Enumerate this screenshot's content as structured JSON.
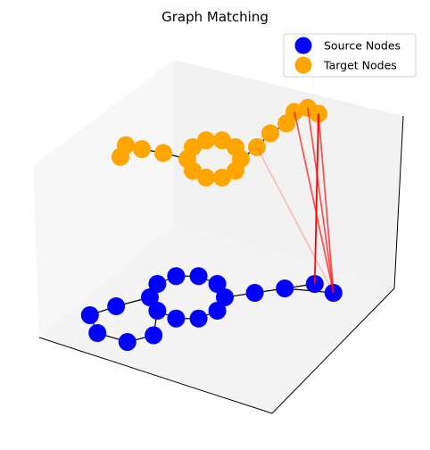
{
  "chart_data": {
    "type": "3d-scatter-graph",
    "title": "Graph Matching",
    "legend": {
      "placement": "top-right",
      "entries": [
        {
          "label": "Source Nodes",
          "color": "#0000ff"
        },
        {
          "label": "Target Nodes",
          "color": "#ffa500"
        }
      ]
    },
    "axes": {
      "ticks_visible": false,
      "grid": false
    },
    "colors": {
      "source_node": "#0000ff",
      "target_node": "#ffa500",
      "graph_edge": "#000000",
      "match_line": "#ff0000",
      "pane_back": "#f2f2f2",
      "pane_side": "#f7f7f7",
      "pane_floor": "#f4f4f4"
    },
    "source_nodes": [
      {
        "id": "s1",
        "x": 1.0,
        "y": 0.0
      },
      {
        "id": "s2",
        "x": 0.8,
        "y": 0.6
      },
      {
        "id": "s3",
        "x": 0.3,
        "y": 0.95
      },
      {
        "id": "s4",
        "x": -0.3,
        "y": 0.95
      },
      {
        "id": "s5",
        "x": -0.8,
        "y": 0.6
      },
      {
        "id": "s6",
        "x": -1.0,
        "y": 0.0
      },
      {
        "id": "s7",
        "x": -0.8,
        "y": -0.6
      },
      {
        "id": "s8",
        "x": -0.3,
        "y": -0.95
      },
      {
        "id": "s9",
        "x": 0.3,
        "y": -0.95
      },
      {
        "id": "s10",
        "x": 0.8,
        "y": -0.6
      },
      {
        "id": "s11",
        "x": 1.8,
        "y": 0.2
      },
      {
        "id": "s12",
        "x": 2.6,
        "y": 0.4
      },
      {
        "id": "s13",
        "x": 3.4,
        "y": 0.6
      },
      {
        "id": "s14",
        "x": 3.9,
        "y": 0.2
      },
      {
        "id": "s15",
        "x": -1.9,
        "y": -0.4
      },
      {
        "id": "s16",
        "x": -2.6,
        "y": -0.8
      },
      {
        "id": "s17",
        "x": -2.4,
        "y": -1.6
      },
      {
        "id": "s18",
        "x": -1.6,
        "y": -2.0
      },
      {
        "id": "s19",
        "x": -0.9,
        "y": -1.7
      }
    ],
    "source_edges": [
      [
        "s1",
        "s2"
      ],
      [
        "s2",
        "s3"
      ],
      [
        "s3",
        "s4"
      ],
      [
        "s4",
        "s5"
      ],
      [
        "s5",
        "s6"
      ],
      [
        "s6",
        "s7"
      ],
      [
        "s7",
        "s8"
      ],
      [
        "s8",
        "s9"
      ],
      [
        "s9",
        "s10"
      ],
      [
        "s10",
        "s1"
      ],
      [
        "s1",
        "s11"
      ],
      [
        "s11",
        "s12"
      ],
      [
        "s12",
        "s13"
      ],
      [
        "s12",
        "s14"
      ],
      [
        "s6",
        "s15"
      ],
      [
        "s15",
        "s16"
      ],
      [
        "s16",
        "s17"
      ],
      [
        "s17",
        "s18"
      ],
      [
        "s18",
        "s19"
      ],
      [
        "s19",
        "s7"
      ]
    ],
    "target_nodes": [
      {
        "id": "t1",
        "x": 1.0,
        "y": 0.0
      },
      {
        "id": "t2",
        "x": 0.8,
        "y": 0.6
      },
      {
        "id": "t3",
        "x": 0.3,
        "y": 0.95
      },
      {
        "id": "t4",
        "x": -0.3,
        "y": 0.95
      },
      {
        "id": "t5",
        "x": -0.8,
        "y": 0.6
      },
      {
        "id": "t6",
        "x": -1.0,
        "y": 0.0
      },
      {
        "id": "t7",
        "x": -0.8,
        "y": -0.6
      },
      {
        "id": "t8",
        "x": -0.3,
        "y": -0.95
      },
      {
        "id": "t9",
        "x": 0.3,
        "y": -0.95
      },
      {
        "id": "t10",
        "x": 0.8,
        "y": -0.6
      },
      {
        "id": "t11",
        "x": 1.6,
        "y": 0.6
      },
      {
        "id": "t12",
        "x": 2.1,
        "y": 1.3
      },
      {
        "id": "t13",
        "x": 2.7,
        "y": 1.8
      },
      {
        "id": "t14",
        "x": 3.0,
        "y": 2.4
      },
      {
        "id": "t15",
        "x": 3.5,
        "y": 2.6
      },
      {
        "id": "t16",
        "x": 3.9,
        "y": 2.3
      },
      {
        "id": "t17",
        "x": -1.9,
        "y": 0.3
      },
      {
        "id": "t18",
        "x": -2.7,
        "y": 0.5
      },
      {
        "id": "t19",
        "x": -3.3,
        "y": 0.7
      },
      {
        "id": "t20",
        "x": -3.5,
        "y": 0.1
      }
    ],
    "target_edges": [
      [
        "t1",
        "t2"
      ],
      [
        "t2",
        "t3"
      ],
      [
        "t3",
        "t4"
      ],
      [
        "t4",
        "t5"
      ],
      [
        "t5",
        "t6"
      ],
      [
        "t6",
        "t7"
      ],
      [
        "t7",
        "t8"
      ],
      [
        "t8",
        "t9"
      ],
      [
        "t9",
        "t10"
      ],
      [
        "t10",
        "t1"
      ],
      [
        "t1",
        "t11"
      ],
      [
        "t11",
        "t12"
      ],
      [
        "t12",
        "t13"
      ],
      [
        "t13",
        "t14"
      ],
      [
        "t14",
        "t15"
      ],
      [
        "t15",
        "t16"
      ],
      [
        "t6",
        "t17"
      ],
      [
        "t17",
        "t18"
      ],
      [
        "t18",
        "t19"
      ],
      [
        "t19",
        "t20"
      ]
    ],
    "matches": [
      {
        "source": "s14",
        "target": "t11",
        "alpha": 0.2
      },
      {
        "source": "s14",
        "target": "t14",
        "alpha": 0.65
      },
      {
        "source": "s14",
        "target": "t15",
        "alpha": 0.65
      },
      {
        "source": "s13",
        "target": "t16",
        "alpha": 1.0
      },
      {
        "source": "s14",
        "target": "t16",
        "alpha": 0.65
      }
    ]
  }
}
